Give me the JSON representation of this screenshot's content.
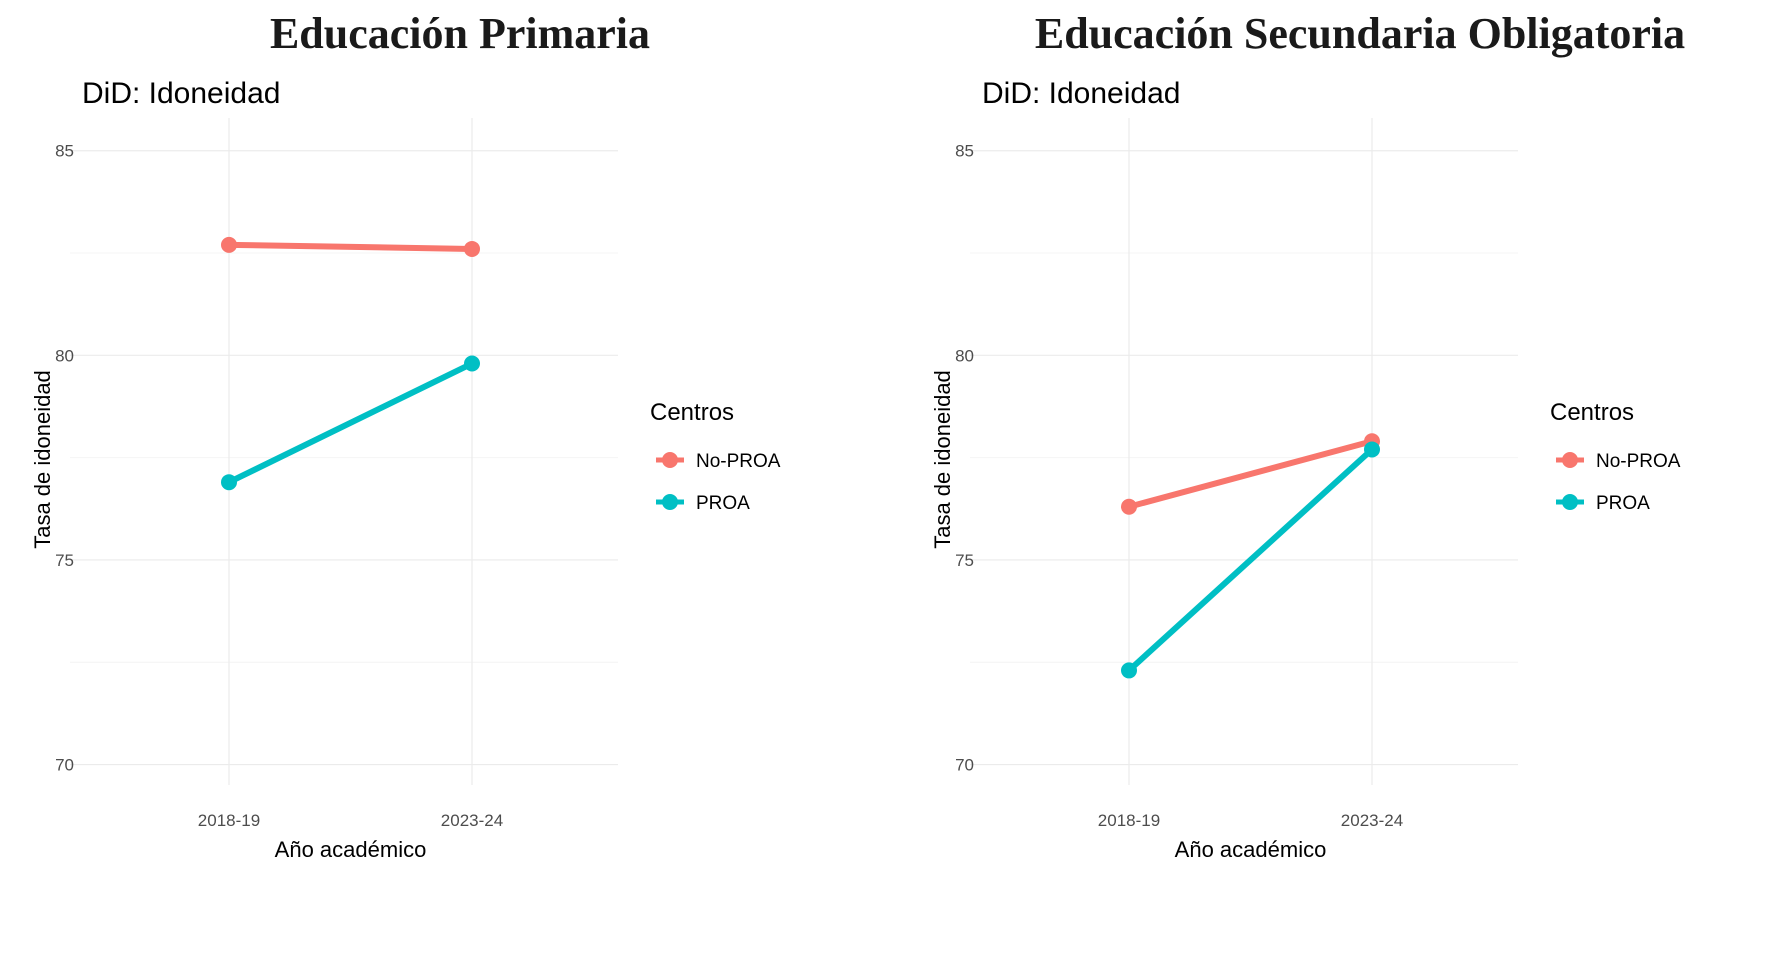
{
  "colors": {
    "no_proa": "#F8766D",
    "proa": "#00BFC4",
    "grid": "#EBEBEB"
  },
  "chart_data": [
    {
      "type": "line",
      "title": "Educación Primaria",
      "subtitle": "DiD: Idoneidad",
      "xlabel": "Año académico",
      "ylabel": "Tasa de idoneidad",
      "categories": [
        "2018-19",
        "2023-24"
      ],
      "ylim": [
        69.5,
        85.8
      ],
      "yticks": [
        70,
        75,
        80,
        85
      ],
      "grid": true,
      "legend": {
        "title": "Centros",
        "position": "right"
      },
      "series": [
        {
          "name": "No-PROA",
          "color": "#F8766D",
          "values": [
            82.7,
            82.6
          ]
        },
        {
          "name": "PROA",
          "color": "#00BFC4",
          "values": [
            76.9,
            79.8
          ]
        }
      ]
    },
    {
      "type": "line",
      "title": "Educación Secundaria Obligatoria",
      "subtitle": "DiD: Idoneidad",
      "xlabel": "Año académico",
      "ylabel": "Tasa de idoneidad",
      "categories": [
        "2018-19",
        "2023-24"
      ],
      "ylim": [
        69.5,
        85.8
      ],
      "yticks": [
        70,
        75,
        80,
        85
      ],
      "grid": true,
      "legend": {
        "title": "Centros",
        "position": "right"
      },
      "series": [
        {
          "name": "No-PROA",
          "color": "#F8766D",
          "values": [
            76.3,
            77.9
          ]
        },
        {
          "name": "PROA",
          "color": "#00BFC4",
          "values": [
            72.3,
            77.7
          ]
        }
      ]
    }
  ]
}
